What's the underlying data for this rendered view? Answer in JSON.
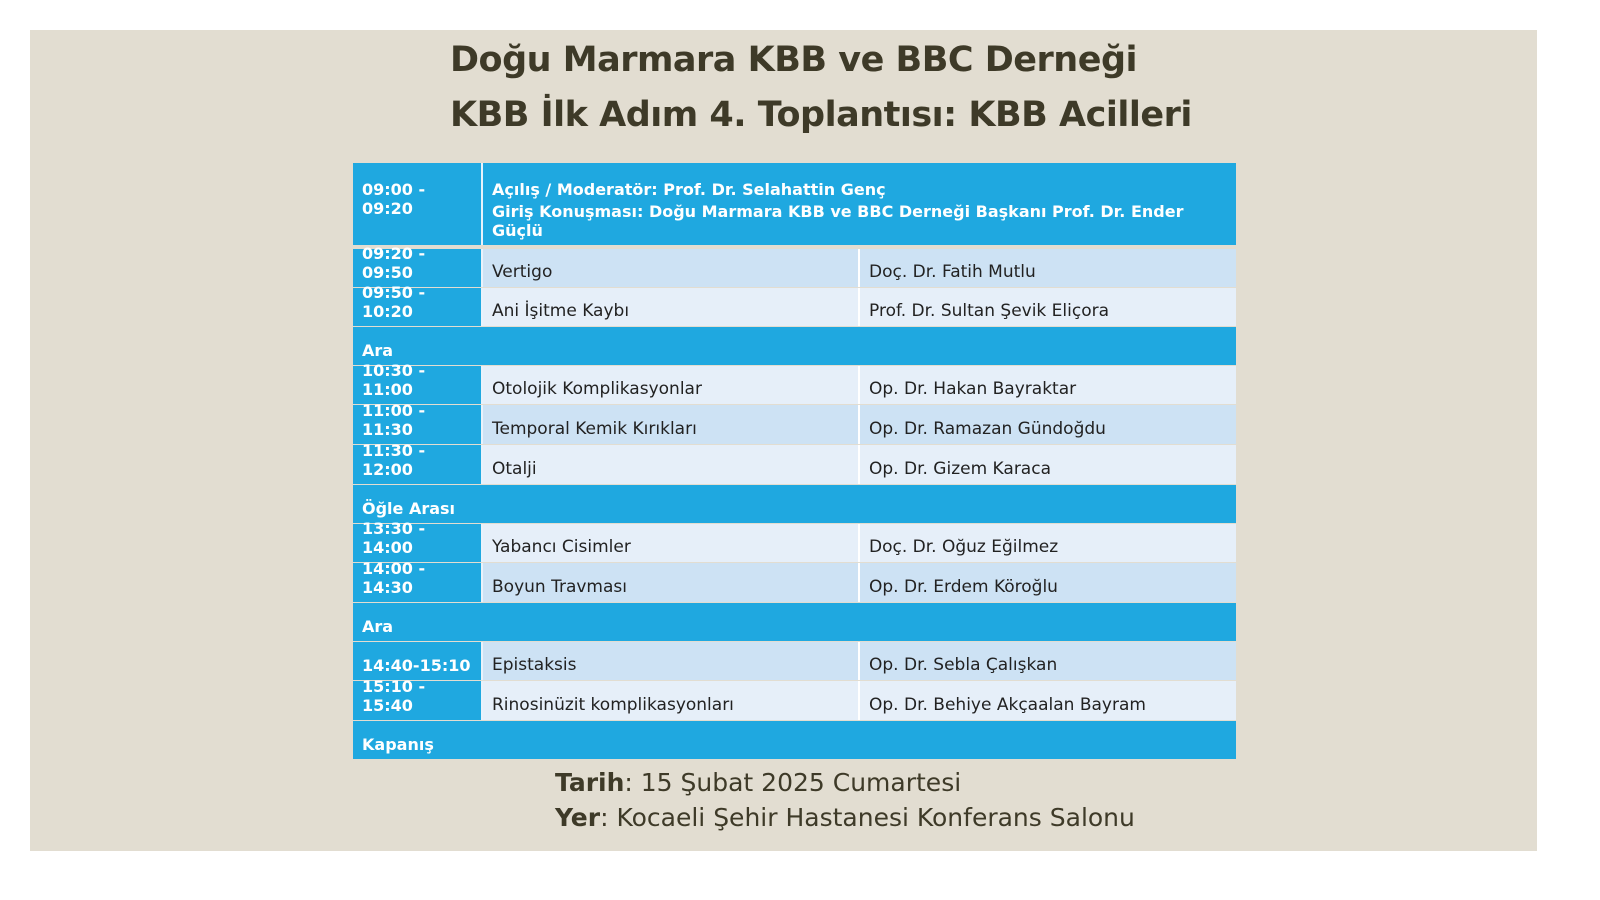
{
  "title": {
    "line1": "Doğu Marmara KBB ve BBC Derneği",
    "line2": "KBB İlk Adım 4. Toplantısı: KBB Acilleri"
  },
  "opening": {
    "time": "09:00 - 09:20",
    "line1": "Açılış / Moderatör: Prof. Dr. Selahattin Genç",
    "line2": "Giriş Konuşması: Doğu Marmara KBB ve BBC Derneği Başkanı Prof. Dr. Ender Güçlü"
  },
  "rows": [
    {
      "time": "09:20 - 09:50",
      "topic": "Vertigo",
      "speaker": "Doç. Dr. Fatih Mutlu"
    },
    {
      "time": "09:50 - 10:20",
      "topic": "Ani İşitme Kaybı",
      "speaker": "Prof. Dr. Sultan Şevik Eliçora"
    },
    {
      "label": "Ara"
    },
    {
      "time": "10:30 - 11:00",
      "topic": "Otolojik Komplikasyonlar",
      "speaker": "Op. Dr. Hakan Bayraktar"
    },
    {
      "time": "11:00 - 11:30",
      "topic": "Temporal Kemik Kırıkları",
      "speaker": "Op. Dr. Ramazan Gündoğdu"
    },
    {
      "time": "11:30 - 12:00",
      "topic": "Otalji",
      "speaker": "Op. Dr. Gizem Karaca"
    },
    {
      "label": "Öğle Arası"
    },
    {
      "time": "13:30 - 14:00",
      "topic": "Yabancı Cisimler",
      "speaker": "Doç. Dr. Oğuz Eğilmez"
    },
    {
      "time": "14:00 - 14:30",
      "topic": "Boyun Travması",
      "speaker": "Op. Dr. Erdem Köroğlu"
    },
    {
      "label": "Ara"
    },
    {
      "time": "14:40-15:10",
      "topic": "Epistaksis",
      "speaker": "Op. Dr. Sebla Çalışkan"
    },
    {
      "time": "15:10 - 15:40",
      "topic": "Rinosinüzit komplikasyonları",
      "speaker": "Op. Dr. Behiye Akçaalan Bayram"
    },
    {
      "label": "Kapanış"
    }
  ],
  "footer": {
    "date_label": "Tarih",
    "date_value": ": 15 Şubat 2025 Cumartesi",
    "venue_label": "Yer",
    "venue_value": ": Kocaeli Şehir Hastanesi Konferans Salonu"
  },
  "colors": {
    "header_blue": "#1fa8e0",
    "row_dark": "#cde2f4",
    "row_light": "#e6eff9",
    "background": "#e2ddd1",
    "title": "#3e3a28"
  }
}
